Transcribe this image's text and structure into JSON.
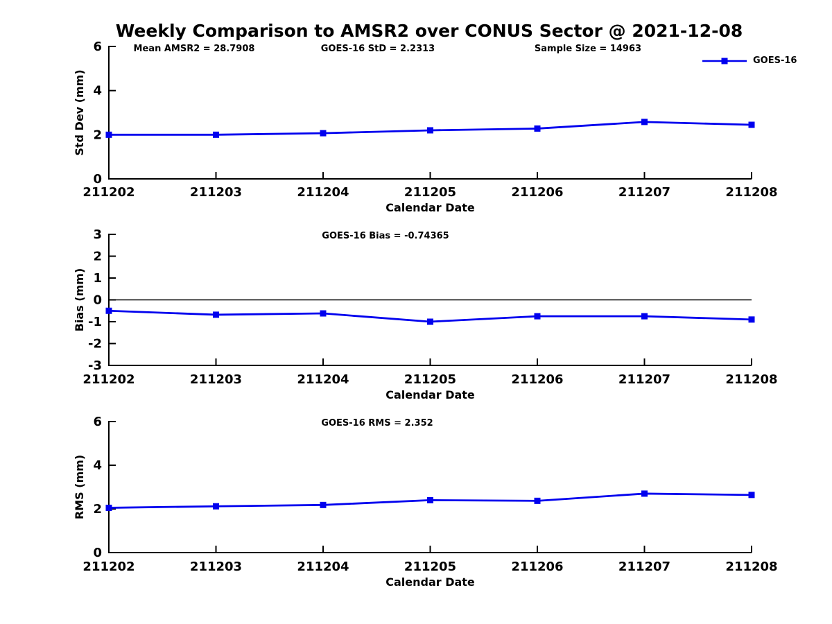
{
  "title": "Weekly Comparison to AMSR2 over CONUS Sector @ 2021-12-08",
  "legend": {
    "label": "GOES-16",
    "line_color": "#0000ee"
  },
  "colors": {
    "line": "#0000ee",
    "axis": "#000000",
    "text": "#000000",
    "background": "#ffffff"
  },
  "chart_data": [
    {
      "type": "line",
      "ylabel": "Std Dev (mm)",
      "xlabel": "Calendar Date",
      "categories": [
        "211202",
        "211203",
        "211204",
        "211205",
        "211206",
        "211207",
        "211208"
      ],
      "series": [
        {
          "name": "GOES-16",
          "values": [
            2.0,
            2.0,
            2.07,
            2.2,
            2.28,
            2.58,
            2.45
          ]
        }
      ],
      "ylim": [
        0,
        6
      ],
      "yticks": [
        0,
        2,
        4,
        6
      ],
      "zero_line": false,
      "grid": false,
      "legend_position": "top-right",
      "annotations": [
        {
          "text": "Mean AMSR2 = 28.7908",
          "x_center": 280
        },
        {
          "text": "GOES-16 StD = 2.2313",
          "x_center": 545
        },
        {
          "text": "Sample Size = 14963",
          "x_center": 848
        }
      ]
    },
    {
      "type": "line",
      "ylabel": "Bias (mm)",
      "xlabel": "Calendar Date",
      "categories": [
        "211202",
        "211203",
        "211204",
        "211205",
        "211206",
        "211207",
        "211208"
      ],
      "series": [
        {
          "name": "GOES-16",
          "values": [
            -0.5,
            -0.68,
            -0.62,
            -1.0,
            -0.75,
            -0.75,
            -0.9
          ]
        }
      ],
      "ylim": [
        -3,
        3
      ],
      "yticks": [
        -3,
        -2,
        -1,
        0,
        1,
        2,
        3
      ],
      "zero_line": true,
      "grid": false,
      "annotations": [
        {
          "text": "GOES-16 Bias  = -0.74365",
          "x_center": 556
        }
      ]
    },
    {
      "type": "line",
      "ylabel": "RMS (mm)",
      "xlabel": "Calendar Date",
      "categories": [
        "211202",
        "211203",
        "211204",
        "211205",
        "211206",
        "211207",
        "211208"
      ],
      "series": [
        {
          "name": "GOES-16",
          "values": [
            2.05,
            2.12,
            2.18,
            2.4,
            2.37,
            2.7,
            2.64
          ]
        }
      ],
      "ylim": [
        0,
        6
      ],
      "yticks": [
        0,
        2,
        4,
        6
      ],
      "zero_line": false,
      "grid": false,
      "annotations": [
        {
          "text": "GOES-16 RMS = 2.352",
          "x_center": 544
        }
      ]
    }
  ]
}
